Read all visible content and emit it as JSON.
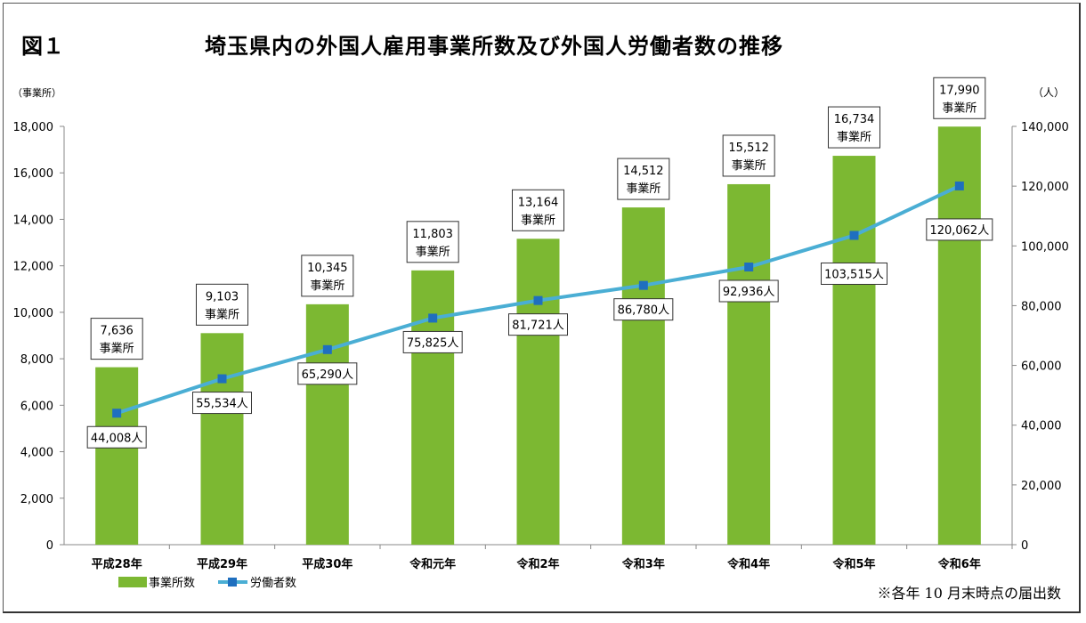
{
  "figure_label": "図１",
  "chart_data": {
    "type": "bar+line",
    "title": "埼玉県内の外国人雇用事業所数及び外国人労働者数の推移",
    "categories": [
      "平成28年",
      "平成29年",
      "平成30年",
      "令和元年",
      "令和2年",
      "令和3年",
      "令和4年",
      "令和5年",
      "令和6年"
    ],
    "series": [
      {
        "name": "事業所数",
        "type": "bar",
        "axis": "left",
        "color": "#7cb832",
        "values": [
          7636,
          9103,
          10345,
          11803,
          13164,
          14512,
          15512,
          16734,
          17990
        ],
        "labels": [
          "7,636",
          "9,103",
          "10,345",
          "11,803",
          "13,164",
          "14,512",
          "15,512",
          "16,734",
          "17,990"
        ],
        "label_unit": "事業所"
      },
      {
        "name": "労働者数",
        "type": "line",
        "axis": "right",
        "color": "#4aaed4",
        "marker_color": "#1f6fbf",
        "values": [
          44008,
          55534,
          65290,
          75825,
          81721,
          86780,
          92936,
          103515,
          120062
        ],
        "labels": [
          "44,008人",
          "55,534人",
          "65,290人",
          "75,825人",
          "81,721人",
          "86,780人",
          "92,936人",
          "103,515人",
          "120,062人"
        ]
      }
    ],
    "y_left": {
      "label": "（事業所）",
      "range": [
        0,
        18000
      ],
      "ticks": [
        "0",
        "2,000",
        "4,000",
        "6,000",
        "8,000",
        "10,000",
        "12,000",
        "14,000",
        "16,000",
        "18,000"
      ]
    },
    "y_right": {
      "label": "（人）",
      "range": [
        0,
        140000
      ],
      "ticks": [
        "0",
        "20,000",
        "40,000",
        "60,000",
        "80,000",
        "100,000",
        "120,000",
        "140,000"
      ]
    },
    "grid": false,
    "legend_placement": "bottom-left"
  },
  "note": "※各年 10 月末時点の届出数"
}
